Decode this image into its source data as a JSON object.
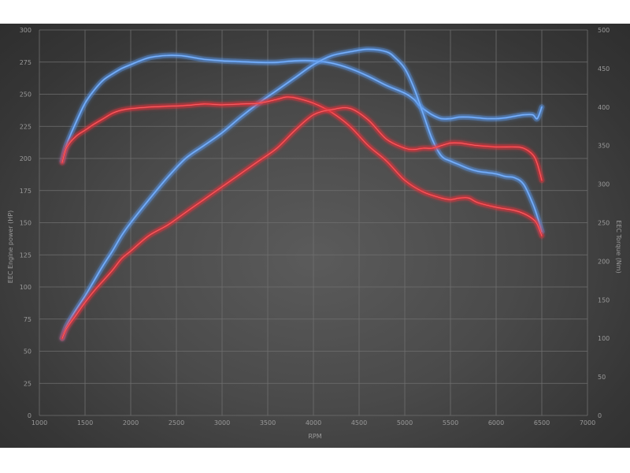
{
  "chart_data": {
    "type": "line",
    "xlabel": "RPM",
    "ylabel_left": "EEC Engine power (HP)",
    "ylabel_right": "EEC Torque (Nm)",
    "xlim": [
      1000,
      7000
    ],
    "ylim_left": [
      0,
      300
    ],
    "ylim_right": [
      0,
      500
    ],
    "x_ticks": [
      "1000",
      "1500",
      "2000",
      "2500",
      "3000",
      "3500",
      "4000",
      "4500",
      "5000",
      "5500",
      "6000",
      "6500",
      "7000"
    ],
    "y_left_ticks": [
      "0",
      "25",
      "50",
      "75",
      "100",
      "125",
      "150",
      "175",
      "200",
      "225",
      "250",
      "275",
      "300"
    ],
    "y_right_ticks": [
      "0",
      "50",
      "100",
      "150",
      "200",
      "250",
      "300",
      "350",
      "400",
      "450",
      "500"
    ],
    "grid": true,
    "colors": {
      "blue": "#5b9bf0",
      "red": "#e8333a"
    },
    "series": [
      {
        "color": "#5b9bf0",
        "axis": "right",
        "x": [
          1250,
          1300,
          1400,
          1500,
          1600,
          1700,
          1800,
          1900,
          2000,
          2100,
          2200,
          2300,
          2400,
          2500,
          2600,
          2800,
          3000,
          3200,
          3400,
          3600,
          3800,
          4000,
          4200,
          4400,
          4600,
          4800,
          5000,
          5100,
          5150,
          5200,
          5300,
          5400,
          5500,
          5600,
          5700,
          5800,
          5900,
          6000,
          6100,
          6200,
          6300,
          6400,
          6450,
          6500
        ],
        "values": [
          330,
          352,
          380,
          405,
          422,
          435,
          443,
          450,
          455,
          460,
          464,
          466,
          467,
          467,
          466,
          462,
          460,
          459,
          458,
          458,
          460,
          460,
          457,
          450,
          440,
          428,
          418,
          410,
          403,
          398,
          390,
          385,
          385,
          387,
          387,
          386,
          385,
          385,
          386,
          388,
          390,
          390,
          385,
          400
        ]
      },
      {
        "color": "#5b9bf0",
        "axis": "left",
        "x": [
          1250,
          1300,
          1400,
          1500,
          1600,
          1700,
          1800,
          1900,
          2000,
          2200,
          2400,
          2600,
          2800,
          3000,
          3200,
          3400,
          3600,
          3800,
          4000,
          4200,
          4400,
          4600,
          4800,
          4900,
          5000,
          5100,
          5200,
          5300,
          5400,
          5500,
          5600,
          5700,
          5800,
          5900,
          6000,
          6100,
          6200,
          6300,
          6400,
          6450,
          6500
        ],
        "values": [
          60,
          70,
          82,
          93,
          105,
          117,
          128,
          140,
          150,
          168,
          185,
          200,
          210,
          220,
          232,
          243,
          253,
          263,
          273,
          280,
          283,
          285,
          283,
          278,
          270,
          255,
          235,
          215,
          202,
          198,
          195,
          192,
          190,
          189,
          188,
          186,
          185,
          180,
          165,
          155,
          143
        ]
      },
      {
        "color": "#e8333a",
        "axis": "right",
        "x": [
          1250,
          1300,
          1400,
          1500,
          1600,
          1700,
          1800,
          1900,
          2000,
          2200,
          2400,
          2600,
          2800,
          3000,
          3200,
          3400,
          3600,
          3700,
          3800,
          4000,
          4200,
          4400,
          4600,
          4800,
          5000,
          5200,
          5400,
          5500,
          5600,
          5700,
          5800,
          6000,
          6200,
          6300,
          6400,
          6450,
          6500
        ],
        "values": [
          328,
          348,
          362,
          370,
          378,
          385,
          392,
          396,
          398,
          400,
          401,
          402,
          404,
          403,
          404,
          405,
          410,
          413,
          412,
          405,
          393,
          375,
          350,
          330,
          305,
          290,
          282,
          280,
          282,
          282,
          276,
          270,
          266,
          262,
          255,
          248,
          233
        ]
      },
      {
        "color": "#e8333a",
        "axis": "left",
        "x": [
          1250,
          1300,
          1400,
          1500,
          1600,
          1700,
          1800,
          1900,
          2000,
          2200,
          2400,
          2600,
          2800,
          3000,
          3200,
          3400,
          3600,
          3800,
          4000,
          4200,
          4400,
          4600,
          4800,
          5000,
          5100,
          5200,
          5300,
          5400,
          5500,
          5600,
          5700,
          5800,
          6000,
          6200,
          6300,
          6400,
          6450,
          6500
        ],
        "values": [
          60,
          68,
          78,
          88,
          97,
          105,
          113,
          122,
          128,
          140,
          148,
          158,
          168,
          178,
          188,
          198,
          208,
          222,
          234,
          238,
          239,
          230,
          215,
          208,
          207,
          208,
          208,
          210,
          212,
          212,
          211,
          210,
          209,
          209,
          208,
          203,
          196,
          183
        ]
      }
    ]
  }
}
